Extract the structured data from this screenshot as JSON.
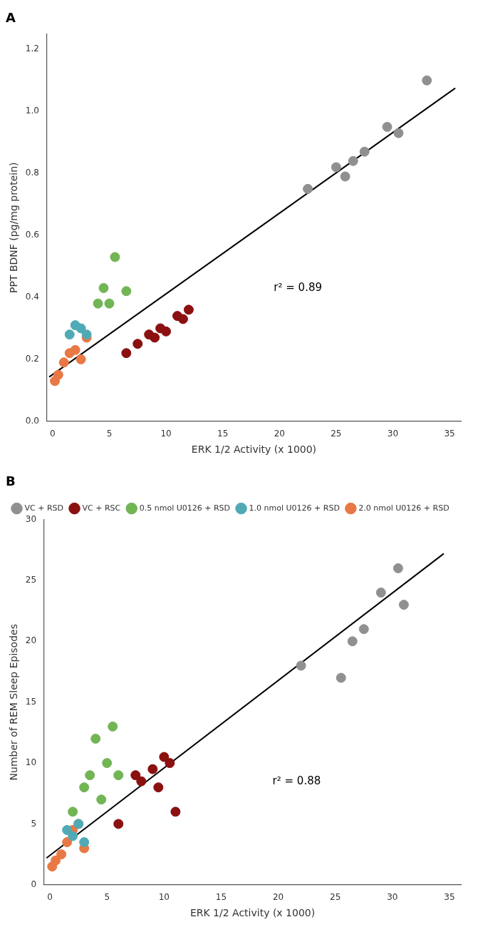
{
  "chart_data": [
    {
      "type": "scatter",
      "title": "A",
      "x_label": "ERK 1/2 Activity (x 1000)",
      "y_label": "PPT BDNF (pg/mg protein)",
      "xlim": [
        -0.5,
        36
      ],
      "ylim": [
        0.0,
        1.25
      ],
      "xticks": [
        0,
        5,
        10,
        15,
        20,
        25,
        30,
        35
      ],
      "yticks": [
        {
          "value": 0.0,
          "label": "0.0"
        },
        0.2,
        0.4,
        0.6,
        0.8,
        {
          "value": 1.0,
          "label": "1.0"
        },
        1.2
      ],
      "grid": false,
      "legend": false,
      "annotations": [
        {
          "text": "r² = 0.89",
          "x": 19.5,
          "y": 0.43
        }
      ],
      "series": [
        {
          "type": "line",
          "color": "#000000",
          "x": [
            -0.3,
            35.5
          ],
          "y": [
            0.143,
            1.075
          ]
        },
        {
          "name": "VC + RSD",
          "color": "#909090",
          "x": [
            22.5,
            25.0,
            25.8,
            26.5,
            27.5,
            29.5,
            30.5,
            33.0
          ],
          "y": [
            0.75,
            0.82,
            0.79,
            0.84,
            0.87,
            0.95,
            0.93,
            1.1
          ]
        },
        {
          "name": "VC + RSC",
          "color": "#8B1010",
          "x": [
            6.5,
            7.5,
            8.5,
            9.0,
            9.5,
            10.0,
            11.0,
            11.5,
            12.0
          ],
          "y": [
            0.22,
            0.25,
            0.28,
            0.27,
            0.3,
            0.29,
            0.34,
            0.33,
            0.36
          ]
        },
        {
          "name": "0.5 nmol U0126 + RSD",
          "color": "#72b555",
          "x": [
            4.0,
            4.5,
            5.0,
            5.5,
            6.5
          ],
          "y": [
            0.38,
            0.43,
            0.38,
            0.53,
            0.42
          ]
        },
        {
          "name": "1.0 nmol U0126 + RSD",
          "color": "#50aab5",
          "x": [
            1.5,
            2.0,
            2.5,
            3.0
          ],
          "y": [
            0.28,
            0.31,
            0.3,
            0.28
          ]
        },
        {
          "name": "2.0 nmol U0126 + RSD",
          "color": "#e87844",
          "x": [
            0.2,
            0.5,
            1.0,
            1.5,
            2.0,
            2.5,
            3.0
          ],
          "y": [
            0.13,
            0.15,
            0.19,
            0.22,
            0.23,
            0.2,
            0.27
          ]
        }
      ]
    },
    {
      "type": "scatter",
      "title": "B",
      "x_label": "ERK 1/2 Activity (x 1000)",
      "y_label": "Number of REM Sleep Episodes",
      "xlim": [
        -0.5,
        36
      ],
      "ylim": [
        0,
        30
      ],
      "xticks": [
        0,
        5,
        10,
        15,
        20,
        25,
        30,
        35
      ],
      "yticks": [
        0,
        5,
        10,
        15,
        20,
        25,
        30
      ],
      "grid": false,
      "legend": "upper left",
      "annotations": [
        {
          "text": "r² = 0.88",
          "x": 19.5,
          "y": 8.5
        }
      ],
      "series": [
        {
          "type": "line",
          "color": "#000000",
          "x": [
            -0.3,
            34.5
          ],
          "y": [
            2.2,
            27.2
          ]
        },
        {
          "name": "VC + RSD",
          "color": "#909090",
          "x": [
            22.0,
            25.5,
            26.5,
            27.5,
            29.0,
            30.5,
            31.0
          ],
          "y": [
            18.0,
            17.0,
            20.0,
            21.0,
            24.0,
            26.0,
            23.0
          ]
        },
        {
          "name": "VC + RSC",
          "color": "#8B1010",
          "x": [
            6.0,
            7.5,
            8.0,
            9.0,
            9.5,
            10.0,
            10.5,
            11.0
          ],
          "y": [
            5.0,
            9.0,
            8.5,
            9.5,
            8.0,
            10.5,
            10.0,
            6.0
          ]
        },
        {
          "name": "0.5 nmol U0126 + RSD",
          "color": "#72b555",
          "x": [
            2.0,
            3.0,
            3.5,
            4.0,
            4.5,
            5.0,
            5.5,
            6.0
          ],
          "y": [
            6.0,
            8.0,
            9.0,
            12.0,
            7.0,
            10.0,
            13.0,
            9.0
          ]
        },
        {
          "name": "1.0 nmol U0126 + RSD",
          "color": "#50aab5",
          "x": [
            1.5,
            2.0,
            2.5,
            3.0
          ],
          "y": [
            4.5,
            4.0,
            5.0,
            3.5
          ]
        },
        {
          "name": "2.0 nmol U0126 + RSD",
          "color": "#e87844",
          "x": [
            0.2,
            0.5,
            1.0,
            1.5,
            2.0,
            2.5,
            3.0
          ],
          "y": [
            1.5,
            2.0,
            2.5,
            3.5,
            4.5,
            5.0,
            3.0
          ]
        }
      ]
    }
  ]
}
